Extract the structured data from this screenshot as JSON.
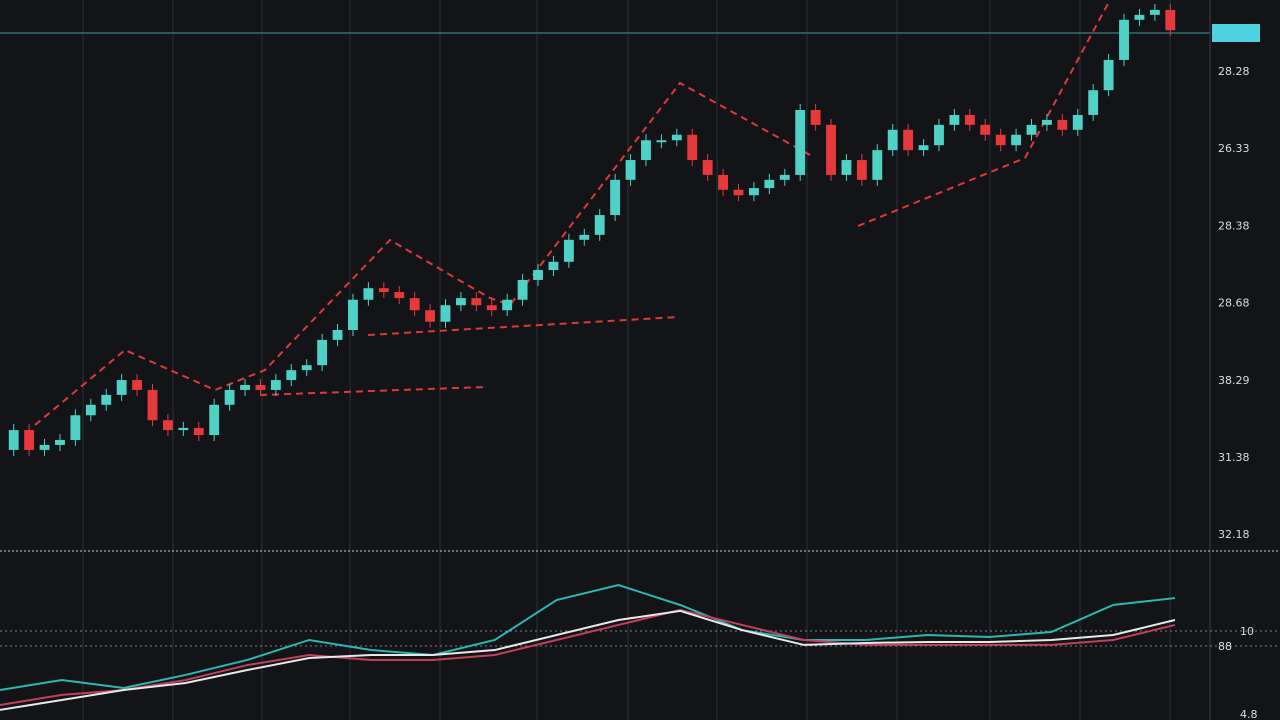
{
  "chart_data": [
    {
      "type": "candlestick",
      "open": [
        18.2,
        21.8,
        18.2,
        19.1,
        20,
        24.5,
        26.4,
        28.2,
        30.9,
        29.1,
        23.6,
        21.8,
        22.2,
        20.9,
        26.4,
        29.1,
        30,
        29.1,
        30.9,
        32.7,
        33.6,
        38.2,
        40,
        45.5,
        47.6,
        46.9,
        45.8,
        43.6,
        41.5,
        44.5,
        45.8,
        44.5,
        43.6,
        45.5,
        49.1,
        50.9,
        52.4,
        56.4,
        57.3,
        60.9,
        67.3,
        70.9,
        74.5,
        74.5,
        75.5,
        70.9,
        68.2,
        65.5,
        64.5,
        65.8,
        67.3,
        68.2,
        80,
        77.3,
        68.2,
        70.9,
        67.3,
        72.7,
        76.4,
        72.7,
        73.6,
        77.3,
        79.1,
        77.3,
        75.5,
        73.6,
        75.5,
        77.3,
        78.2,
        76.4,
        79.1,
        83.6,
        89.1,
        96.4,
        97.3,
        98.2
      ],
      "close": [
        21.8,
        18.2,
        19.1,
        20,
        24.5,
        26.4,
        28.2,
        30.9,
        29.1,
        23.6,
        21.8,
        22.2,
        20.9,
        26.4,
        29.1,
        30,
        29.1,
        30.9,
        32.7,
        33.6,
        38.2,
        40,
        45.5,
        47.6,
        46.9,
        45.8,
        43.6,
        41.5,
        44.5,
        45.8,
        44.5,
        43.6,
        45.5,
        49.1,
        50.9,
        52.4,
        56.4,
        57.3,
        60.9,
        67.3,
        70.9,
        74.5,
        74.5,
        75.5,
        70.9,
        68.2,
        65.5,
        64.5,
        65.8,
        67.3,
        68.2,
        80,
        77.3,
        68.2,
        70.9,
        67.3,
        72.7,
        76.4,
        72.7,
        73.6,
        77.3,
        79.1,
        77.3,
        75.5,
        73.6,
        75.5,
        77.3,
        78.2,
        76.4,
        79.1,
        83.6,
        89.1,
        96.4,
        97.3,
        98.2,
        94.5
      ],
      "up_color": "#4fd1c5",
      "down_color": "#e5393b",
      "ylim": [
        0,
        100
      ],
      "axis_labels": [
        "28.28",
        "26.33",
        "28.38",
        "28.68",
        "38.29",
        "31.38",
        "32.18"
      ]
    },
    {
      "type": "line",
      "ylim": [
        0,
        100
      ],
      "series": [
        {
          "color": "#2bb7b3",
          "values": [
            18.2,
            24.2,
            19.4,
            27.3,
            36.4,
            48.5,
            42.4,
            39.4,
            48.5,
            72.7,
            81.8,
            69.7,
            54.5,
            48.5,
            48.5,
            51.5,
            50.3,
            53.3,
            69.7,
            73.9
          ]
        },
        {
          "color": "#c2405a",
          "values": [
            9.1,
            15.2,
            18.2,
            24.2,
            33.3,
            39.4,
            36.4,
            36.4,
            39.4,
            48.5,
            57.6,
            66.7,
            57.6,
            48.5,
            45.5,
            45.5,
            45.5,
            45.5,
            48.5,
            57.6
          ]
        },
        {
          "color": "#e6e8ec",
          "values": [
            6.1,
            12.1,
            18.2,
            22.4,
            30.3,
            37.6,
            39.4,
            39.4,
            42.4,
            51.5,
            60.6,
            66.1,
            54.5,
            45.5,
            46.7,
            47.3,
            47.3,
            48.5,
            51.5,
            60.6
          ]
        }
      ],
      "axis_labels": [
        "10",
        "88",
        "4.8"
      ]
    }
  ]
}
